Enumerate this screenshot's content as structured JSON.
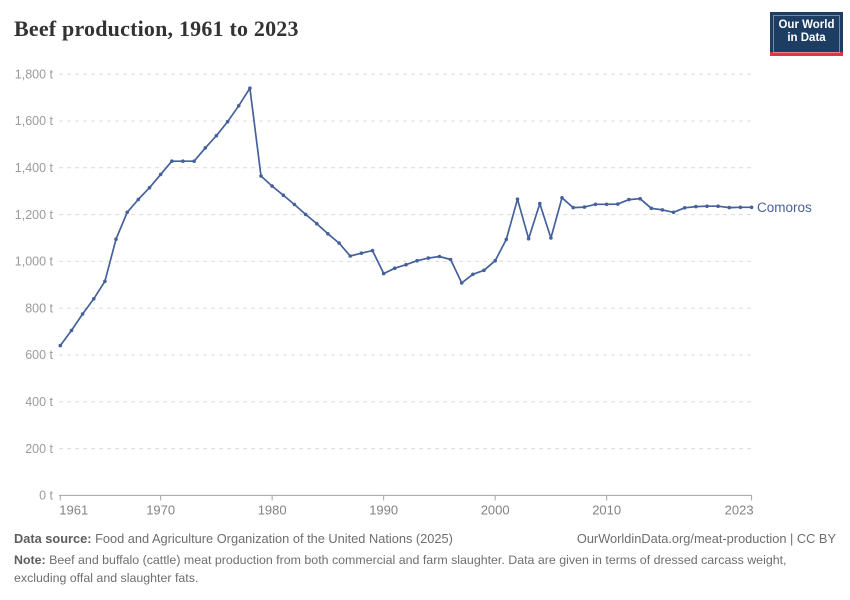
{
  "header": {
    "title": "Beef production, 1961 to 2023"
  },
  "logo": {
    "line1": "Our World",
    "line2": "in Data",
    "bg_color": "#1d3d63",
    "accent_color": "#d73c3c"
  },
  "chart_data": {
    "type": "line",
    "title": "Beef production, 1961 to 2023",
    "unit": "t",
    "xlabel": "",
    "ylabel": "",
    "ylim": [
      0,
      1800
    ],
    "grid": "dashed-horizontal",
    "legend_position": "end-of-line-label",
    "xticks": [
      1961,
      1970,
      1980,
      1990,
      2000,
      2010,
      2023
    ],
    "yticks": [
      {
        "v": 0,
        "label": "0 t"
      },
      {
        "v": 200,
        "label": "200 t"
      },
      {
        "v": 400,
        "label": "400 t"
      },
      {
        "v": 600,
        "label": "600 t"
      },
      {
        "v": 800,
        "label": "800 t"
      },
      {
        "v": 1000,
        "label": "1,000 t"
      },
      {
        "v": 1200,
        "label": "1,200 t"
      },
      {
        "v": 1400,
        "label": "1,400 t"
      },
      {
        "v": 1600,
        "label": "1,600 t"
      },
      {
        "v": 1800,
        "label": "1,800 t"
      }
    ],
    "x": [
      1961,
      1962,
      1963,
      1964,
      1965,
      1966,
      1967,
      1968,
      1969,
      1970,
      1971,
      1972,
      1973,
      1974,
      1975,
      1976,
      1977,
      1978,
      1979,
      1980,
      1981,
      1982,
      1983,
      1984,
      1985,
      1986,
      1987,
      1988,
      1989,
      1990,
      1991,
      1992,
      1993,
      1994,
      1995,
      1996,
      1997,
      1998,
      1999,
      2000,
      2001,
      2002,
      2003,
      2004,
      2005,
      2006,
      2007,
      2008,
      2009,
      2010,
      2011,
      2012,
      2013,
      2014,
      2015,
      2016,
      2017,
      2018,
      2019,
      2020,
      2021,
      2022,
      2023
    ],
    "series": [
      {
        "name": "Comoros",
        "values": [
          640,
          705,
          775,
          840,
          915,
          1095,
          1210,
          1265,
          1315,
          1372,
          1428,
          1428,
          1428,
          1485,
          1537,
          1597,
          1665,
          1740,
          1365,
          1322,
          1283,
          1243,
          1201,
          1161,
          1118,
          1078,
          1023,
          1035,
          1046,
          948,
          971,
          986,
          1003,
          1014,
          1021,
          1008,
          908,
          945,
          962,
          1003,
          1094,
          1266,
          1097,
          1247,
          1100,
          1272,
          1230,
          1232,
          1244,
          1244,
          1245,
          1264,
          1268,
          1227,
          1220,
          1210,
          1229,
          1234,
          1236,
          1236,
          1230,
          1231,
          1231
        ]
      }
    ],
    "colors": {
      "line": "#45619c",
      "grid": "#dcdcdc",
      "axis": "#a3a3a3",
      "ytick_text": "#9b9b9b",
      "xtick_text": "#838383"
    }
  },
  "footer": {
    "datasource_label": "Data source:",
    "datasource_text": " Food and Agriculture Organization of the United Nations (2025)",
    "link_text": "OurWorldinData.org/meat-production | CC BY",
    "note_label": "Note:",
    "note_text": " Beef and buffalo (cattle) meat production from both commercial and farm slaughter. Data are given in terms of dressed carcass weight, excluding offal and slaughter fats."
  }
}
